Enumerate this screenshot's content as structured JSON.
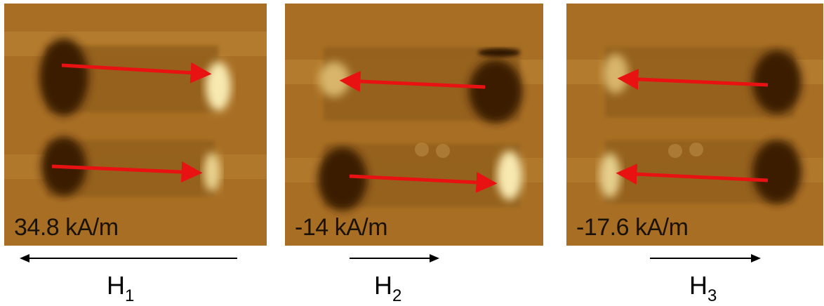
{
  "colors": {
    "background": "#a86f24",
    "dark_domain": "#3a1d06",
    "bright_domain": "#f8e9b0",
    "magnetization_arrow": "#e81212",
    "field_arrow": "#000000"
  },
  "panels": [
    {
      "field_value": "34.8 kA/m",
      "field_label": "H",
      "field_label_sub": "1",
      "field_direction": "left",
      "magnetization_arrows": [
        "right",
        "right"
      ]
    },
    {
      "field_value": "-14 kA/m",
      "field_label": "H",
      "field_label_sub": "2",
      "field_direction": "right",
      "magnetization_arrows": [
        "left",
        "right"
      ]
    },
    {
      "field_value": "-17.6 kA/m",
      "field_label": "H",
      "field_label_sub": "3",
      "field_direction": "right",
      "magnetization_arrows": [
        "left",
        "left"
      ]
    }
  ]
}
